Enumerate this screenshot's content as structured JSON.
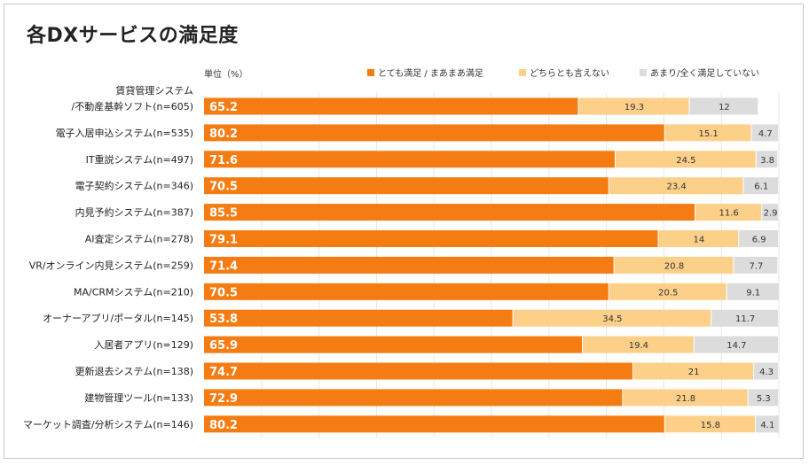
{
  "title": "各DXサービスの満足度",
  "unit_label": "単位（%）",
  "colors": {
    "satisfied": "#f47c12",
    "neutral": "#fdd08a",
    "unsatisfied": "#dcdcdc",
    "grid": "#e6e6e6"
  },
  "chart_data": {
    "type": "bar",
    "stacked": true,
    "orientation": "horizontal",
    "title": "各DXサービスの満足度",
    "xlim": [
      0,
      100
    ],
    "legend_position": "top-right",
    "categories": [
      [
        "賃貸管理システム",
        "/不動産基幹ソフト(n=605)"
      ],
      [
        "電子入居申込システム(n=535)"
      ],
      [
        "IT重説システム(n=497)"
      ],
      [
        "電子契約システム(n=346)"
      ],
      [
        "内見予約システム(n=387)"
      ],
      [
        "AI査定システム(n=278)"
      ],
      [
        "VR/オンライン内見システム(n=259)"
      ],
      [
        "MA/CRMシステム(n=210)"
      ],
      [
        "オーナーアプリ/ポータル(n=145)"
      ],
      [
        "入居者アプリ(n=129)"
      ],
      [
        "更新退去システム(n=138)"
      ],
      [
        "建物管理ツール(n=133)"
      ],
      [
        "マーケット調査/分析システム(n=146)"
      ]
    ],
    "series": [
      {
        "name": "とても満足 / まあまあ満足",
        "values": [
          65.2,
          80.2,
          71.6,
          70.5,
          85.5,
          79.1,
          71.4,
          70.5,
          53.8,
          65.9,
          74.7,
          72.9,
          80.2
        ]
      },
      {
        "name": "どちらとも言えない",
        "values": [
          19.3,
          15.1,
          24.5,
          23.4,
          11.6,
          14,
          20.8,
          20.5,
          34.5,
          19.4,
          21,
          21.8,
          15.8
        ]
      },
      {
        "name": "あまり/全く満足していない",
        "values": [
          12,
          4.7,
          3.8,
          6.1,
          2.9,
          6.9,
          7.7,
          9.1,
          11.7,
          14.7,
          4.3,
          5.3,
          4.1
        ]
      }
    ]
  }
}
